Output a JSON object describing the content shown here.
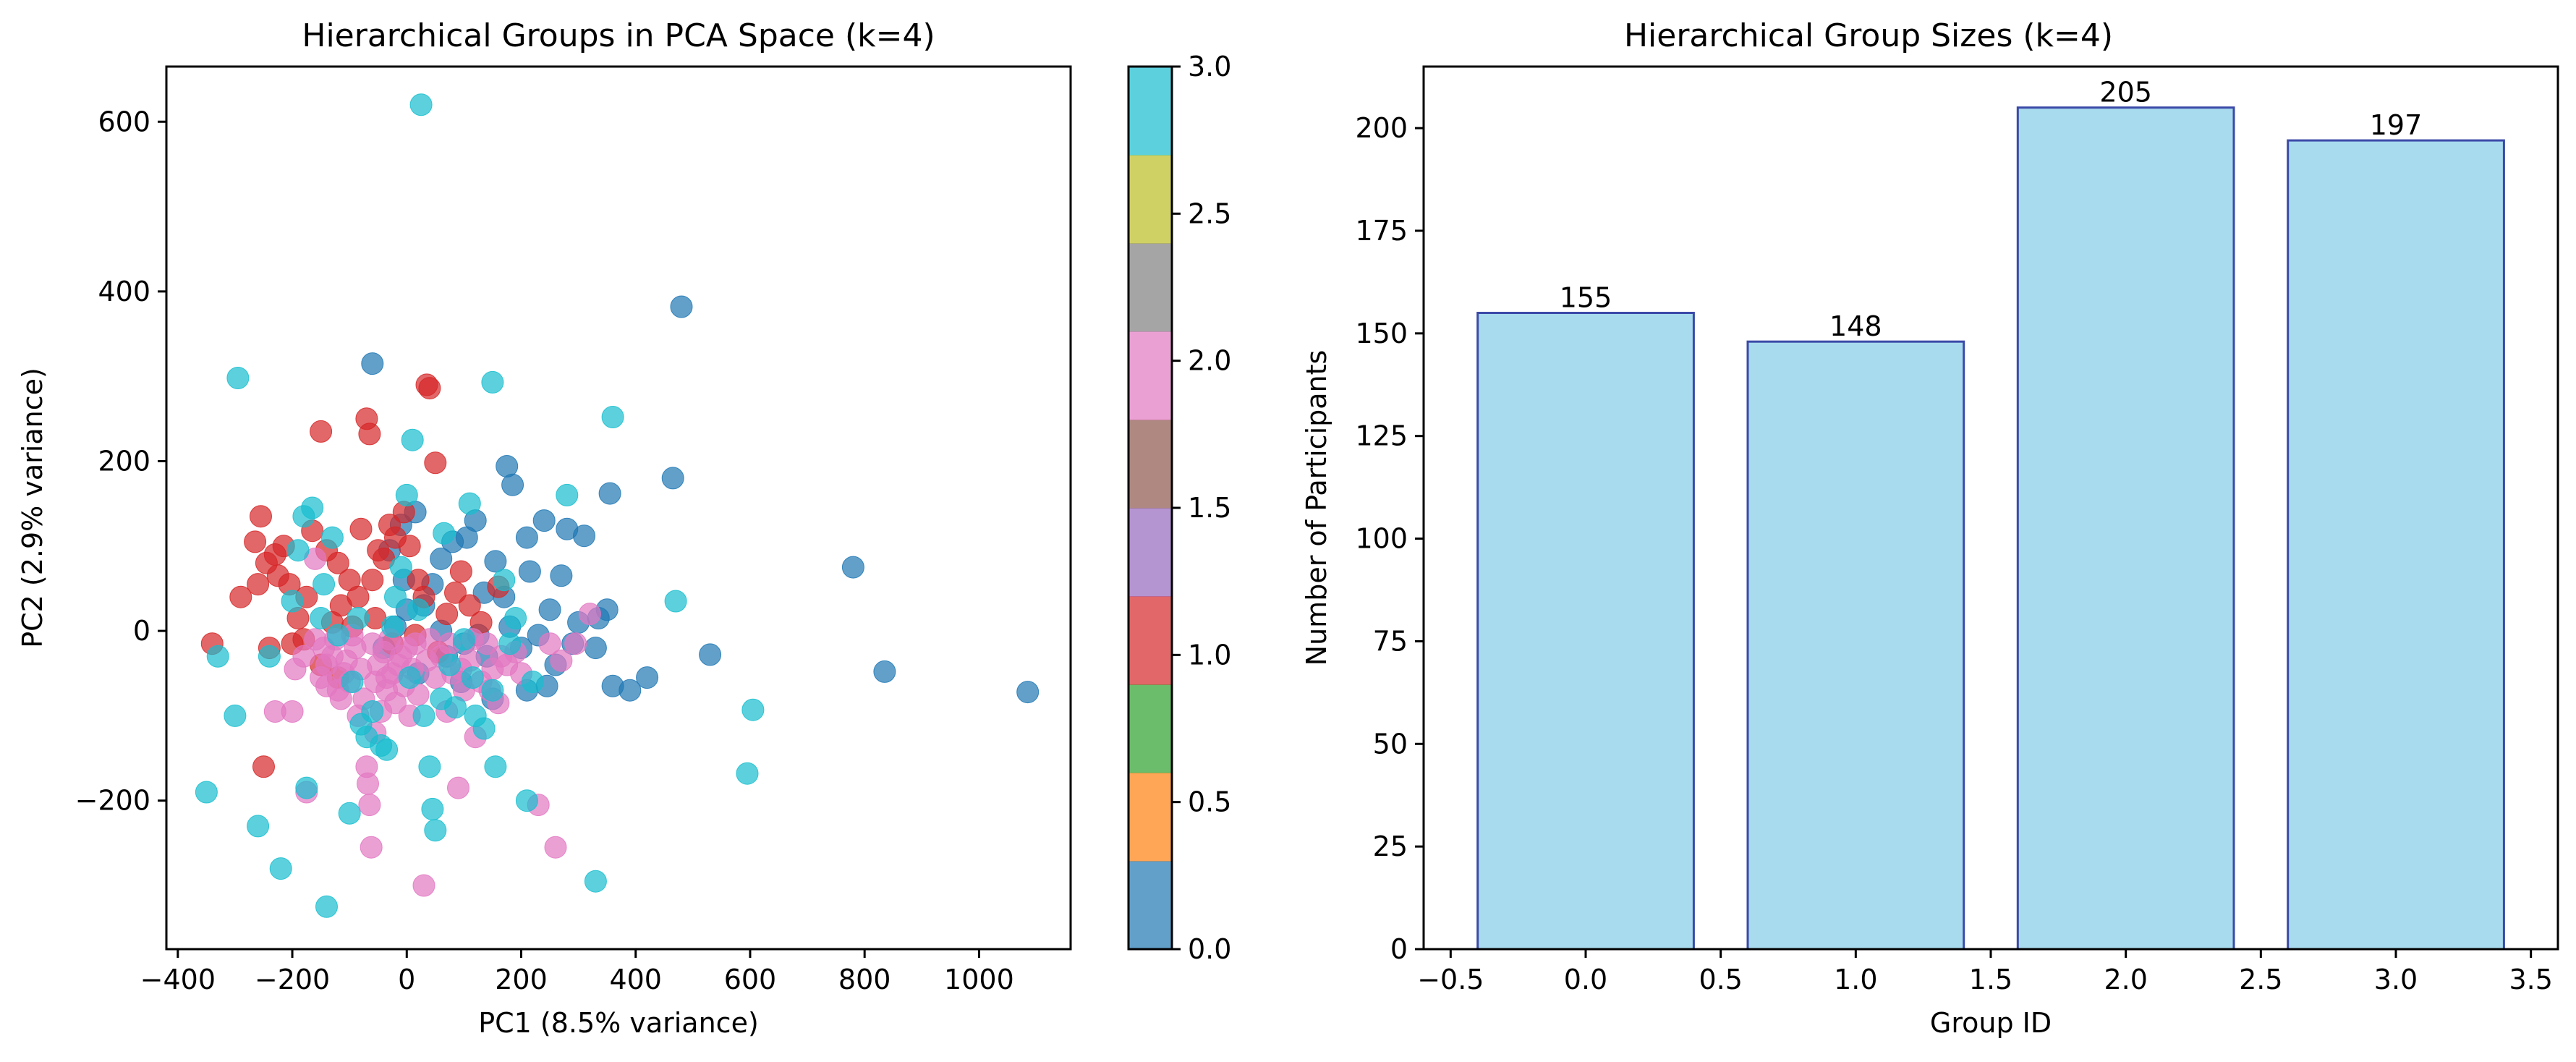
{
  "chart_data": [
    {
      "type": "scatter",
      "title": "Hierarchical Groups in PCA Space (k=4)",
      "xlabel": "PC1 (8.5% variance)",
      "ylabel": "PC2 (2.9% variance)",
      "xlim": [
        -420,
        1160
      ],
      "ylim": [
        -375,
        665
      ],
      "xticks": [
        -400,
        -200,
        0,
        200,
        400,
        600,
        800,
        1000
      ],
      "yticks": [
        -200,
        0,
        200,
        400,
        600
      ],
      "grid": false,
      "colormap": "tab10",
      "colorbar": {
        "ticks": [
          "0.0",
          "0.5",
          "1.0",
          "1.5",
          "2.0",
          "2.5",
          "3.0"
        ],
        "range": [
          0,
          3
        ],
        "colors": [
          "#1f77b4",
          "#ff7f0e",
          "#2ca02c",
          "#d62728",
          "#9467bd",
          "#8c564b",
          "#e377c2",
          "#7f7f7f",
          "#bcbd22",
          "#17becf"
        ]
      },
      "group_colors": [
        "#1f77b4",
        "#d62728",
        "#e377c2",
        "#17becf"
      ],
      "series": [
        {
          "group": 0,
          "points": [
            [
              480,
              382
            ],
            [
              -60,
              315
            ],
            [
              465,
              180
            ],
            [
              780,
              75
            ],
            [
              835,
              -48
            ],
            [
              1085,
              -72
            ],
            [
              530,
              -28
            ],
            [
              420,
              -55
            ],
            [
              390,
              -70
            ],
            [
              360,
              -65
            ],
            [
              335,
              15
            ],
            [
              350,
              25
            ],
            [
              355,
              162
            ],
            [
              310,
              112
            ],
            [
              280,
              120
            ],
            [
              270,
              65
            ],
            [
              240,
              130
            ],
            [
              210,
              110
            ],
            [
              185,
              172
            ],
            [
              175,
              194
            ],
            [
              155,
              82
            ],
            [
              135,
              45
            ],
            [
              120,
              130
            ],
            [
              105,
              110
            ],
            [
              80,
              105
            ],
            [
              60,
              85
            ],
            [
              45,
              55
            ],
            [
              30,
              30
            ],
            [
              15,
              140
            ],
            [
              -10,
              125
            ],
            [
              -30,
              95
            ],
            [
              100,
              -15
            ],
            [
              140,
              -30
            ],
            [
              180,
              5
            ],
            [
              200,
              -20
            ],
            [
              230,
              -5
            ],
            [
              250,
              25
            ],
            [
              260,
              -40
            ],
            [
              210,
              -70
            ],
            [
              150,
              -80
            ],
            [
              95,
              -60
            ],
            [
              70,
              -30
            ],
            [
              20,
              -50
            ],
            [
              0,
              25
            ],
            [
              -20,
              5
            ],
            [
              -5,
              60
            ],
            [
              170,
              40
            ],
            [
              215,
              70
            ],
            [
              300,
              10
            ],
            [
              60,
              0
            ],
            [
              -40,
              -20
            ],
            [
              125,
              -5
            ],
            [
              245,
              -65
            ],
            [
              290,
              -15
            ],
            [
              330,
              -20
            ]
          ]
        },
        {
          "group": 1,
          "points": [
            [
              -340,
              -15
            ],
            [
              -290,
              40
            ],
            [
              -265,
              105
            ],
            [
              -255,
              135
            ],
            [
              -245,
              80
            ],
            [
              -230,
              90
            ],
            [
              -215,
              100
            ],
            [
              -205,
              55
            ],
            [
              -190,
              15
            ],
            [
              -180,
              -10
            ],
            [
              -165,
              118
            ],
            [
              -150,
              235
            ],
            [
              -130,
              10
            ],
            [
              -120,
              80
            ],
            [
              -115,
              30
            ],
            [
              -100,
              60
            ],
            [
              -85,
              40
            ],
            [
              -70,
              250
            ],
            [
              -65,
              232
            ],
            [
              -60,
              60
            ],
            [
              -50,
              95
            ],
            [
              -40,
              85
            ],
            [
              -30,
              125
            ],
            [
              -20,
              110
            ],
            [
              -5,
              140
            ],
            [
              5,
              100
            ],
            [
              20,
              60
            ],
            [
              35,
              290
            ],
            [
              40,
              286
            ],
            [
              50,
              198
            ],
            [
              70,
              20
            ],
            [
              85,
              45
            ],
            [
              95,
              70
            ],
            [
              110,
              30
            ],
            [
              130,
              10
            ],
            [
              160,
              52
            ],
            [
              -250,
              -160
            ],
            [
              -240,
              -20
            ],
            [
              -200,
              -15
            ],
            [
              -150,
              -40
            ],
            [
              -120,
              -55
            ],
            [
              -95,
              5
            ],
            [
              -55,
              15
            ],
            [
              -25,
              -15
            ],
            [
              15,
              -5
            ],
            [
              -260,
              55
            ],
            [
              -225,
              65
            ],
            [
              -175,
              40
            ],
            [
              -140,
              95
            ],
            [
              -80,
              120
            ],
            [
              30,
              40
            ],
            [
              55,
              -25
            ]
          ]
        },
        {
          "group": 2,
          "points": [
            [
              -230,
              -95
            ],
            [
              -200,
              -95
            ],
            [
              -175,
              -190
            ],
            [
              -160,
              -10
            ],
            [
              -150,
              -55
            ],
            [
              -140,
              -40
            ],
            [
              -130,
              -30
            ],
            [
              -120,
              -70
            ],
            [
              -110,
              -50
            ],
            [
              -100,
              -60
            ],
            [
              -90,
              -20
            ],
            [
              -85,
              -100
            ],
            [
              -80,
              -45
            ],
            [
              -75,
              -80
            ],
            [
              -70,
              -160
            ],
            [
              -68,
              -180
            ],
            [
              -65,
              -205
            ],
            [
              -62,
              -255
            ],
            [
              -55,
              -60
            ],
            [
              -50,
              -40
            ],
            [
              -45,
              -95
            ],
            [
              -40,
              -25
            ],
            [
              -35,
              -70
            ],
            [
              -30,
              -10
            ],
            [
              -25,
              -50
            ],
            [
              -20,
              -85
            ],
            [
              -15,
              -40
            ],
            [
              -10,
              -30
            ],
            [
              -5,
              -65
            ],
            [
              0,
              -20
            ],
            [
              10,
              -45
            ],
            [
              20,
              -75
            ],
            [
              30,
              -300
            ],
            [
              40,
              -10
            ],
            [
              50,
              -55
            ],
            [
              60,
              -30
            ],
            [
              70,
              -95
            ],
            [
              80,
              -50
            ],
            [
              90,
              -185
            ],
            [
              100,
              -70
            ],
            [
              110,
              -35
            ],
            [
              120,
              -125
            ],
            [
              130,
              -60
            ],
            [
              140,
              -15
            ],
            [
              150,
              -45
            ],
            [
              160,
              -85
            ],
            [
              175,
              -40
            ],
            [
              190,
              -25
            ],
            [
              200,
              -50
            ],
            [
              230,
              -205
            ],
            [
              250,
              -15
            ],
            [
              260,
              -255
            ],
            [
              270,
              -35
            ],
            [
              295,
              -15
            ],
            [
              320,
              20
            ],
            [
              -180,
              -30
            ],
            [
              -160,
              85
            ],
            [
              -140,
              -65
            ],
            [
              -125,
              -10
            ],
            [
              -105,
              -35
            ],
            [
              -95,
              -5
            ],
            [
              -60,
              -15
            ],
            [
              -35,
              -55
            ],
            [
              15,
              -15
            ],
            [
              35,
              -35
            ],
            [
              75,
              -15
            ],
            [
              95,
              -45
            ],
            [
              115,
              -10
            ],
            [
              145,
              -70
            ],
            [
              165,
              -30
            ],
            [
              -195,
              -45
            ],
            [
              -145,
              -20
            ],
            [
              -115,
              -80
            ],
            [
              -55,
              -120
            ],
            [
              5,
              -100
            ]
          ]
        },
        {
          "group": 3,
          "points": [
            [
              25,
              620
            ],
            [
              -295,
              298
            ],
            [
              150,
              293
            ],
            [
              360,
              252
            ],
            [
              10,
              225
            ],
            [
              -350,
              -190
            ],
            [
              -330,
              -30
            ],
            [
              -300,
              -100
            ],
            [
              -260,
              -230
            ],
            [
              -240,
              -30
            ],
            [
              -220,
              -280
            ],
            [
              -200,
              35
            ],
            [
              -190,
              95
            ],
            [
              -180,
              135
            ],
            [
              -165,
              145
            ],
            [
              -150,
              15
            ],
            [
              -140,
              -325
            ],
            [
              -130,
              110
            ],
            [
              -120,
              -5
            ],
            [
              -100,
              -215
            ],
            [
              -95,
              -60
            ],
            [
              -80,
              -110
            ],
            [
              -70,
              -125
            ],
            [
              -60,
              -95
            ],
            [
              -45,
              -135
            ],
            [
              -35,
              -140
            ],
            [
              -20,
              40
            ],
            [
              -10,
              75
            ],
            [
              0,
              160
            ],
            [
              5,
              -55
            ],
            [
              20,
              25
            ],
            [
              30,
              -100
            ],
            [
              40,
              -160
            ],
            [
              45,
              -210
            ],
            [
              50,
              -235
            ],
            [
              60,
              -80
            ],
            [
              75,
              -40
            ],
            [
              85,
              -90
            ],
            [
              100,
              -10
            ],
            [
              110,
              150
            ],
            [
              120,
              -100
            ],
            [
              135,
              -115
            ],
            [
              150,
              -70
            ],
            [
              155,
              -160
            ],
            [
              170,
              60
            ],
            [
              190,
              15
            ],
            [
              210,
              -200
            ],
            [
              220,
              -60
            ],
            [
              280,
              160
            ],
            [
              330,
              -295
            ],
            [
              470,
              35
            ],
            [
              595,
              -168
            ],
            [
              605,
              -93
            ],
            [
              -175,
              -185
            ],
            [
              -145,
              55
            ],
            [
              -85,
              15
            ],
            [
              -25,
              5
            ],
            [
              65,
              115
            ],
            [
              115,
              -55
            ],
            [
              180,
              -15
            ]
          ]
        }
      ]
    },
    {
      "type": "bar",
      "title": "Hierarchical Group Sizes (k=4)",
      "xlabel": "Group ID",
      "ylabel": "Number of Participants",
      "categories": [
        0,
        1,
        2,
        3
      ],
      "values": [
        155,
        148,
        205,
        197
      ],
      "xlim": [
        -0.6,
        3.6
      ],
      "ylim": [
        0,
        215
      ],
      "xticks": [
        "−0.5",
        "0.0",
        "0.5",
        "1.0",
        "1.5",
        "2.0",
        "2.5",
        "3.0",
        "3.5"
      ],
      "yticks": [
        0,
        25,
        50,
        75,
        100,
        125,
        150,
        175,
        200
      ],
      "bar_color": "#a8dbee",
      "bar_edge_color": "#3b4aa8",
      "grid": false
    }
  ]
}
